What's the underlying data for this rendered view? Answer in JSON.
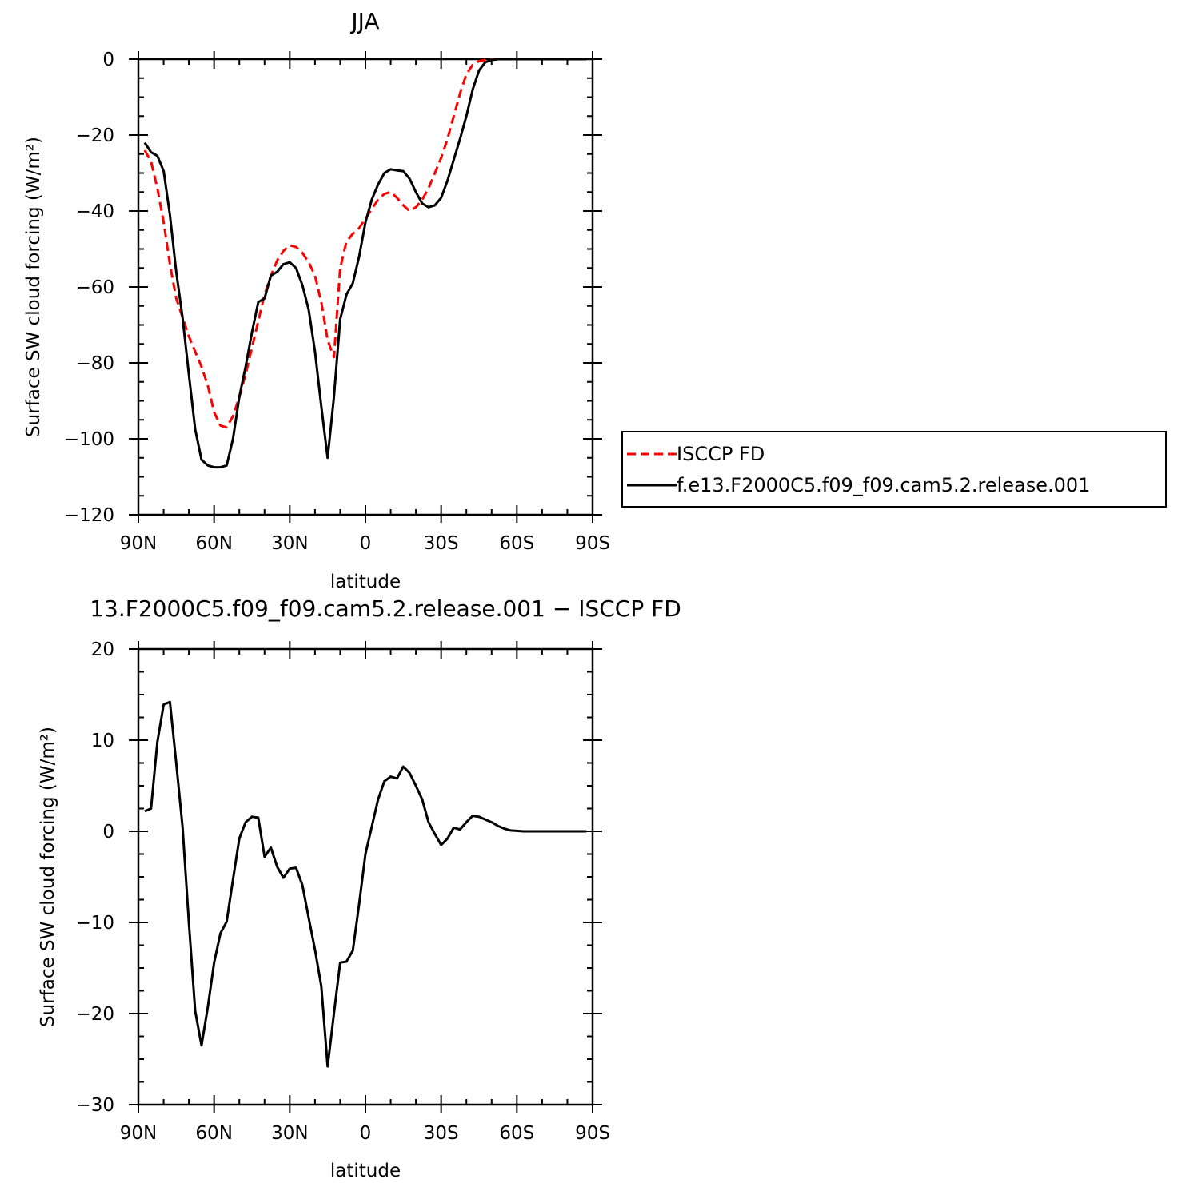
{
  "chart_data": [
    {
      "type": "line",
      "title": "JJA",
      "xlabel": "latitude",
      "ylabel": "Surface SW cloud forcing (W/m²)",
      "xlim": [
        -90,
        90
      ],
      "ylim": [
        -120,
        0
      ],
      "x_direction": "90N on left, 90S on right",
      "x_ticks": [
        90,
        60,
        30,
        0,
        -30,
        -60,
        -90
      ],
      "x_tick_labels": [
        "90N",
        "60N",
        "30N",
        "0",
        "30S",
        "60S",
        "90S"
      ],
      "y_ticks": [
        0,
        -20,
        -40,
        -60,
        -80,
        -100,
        -120
      ],
      "y_tick_labels": [
        "0",
        "−20",
        "−40",
        "−60",
        "−80",
        "−100",
        "−120"
      ],
      "grid": false,
      "legend_position": "right of plot",
      "series": [
        {
          "name": "ISCCP FD",
          "color": "#ff0000",
          "style": "dashed",
          "x": [
            87.5,
            85,
            82.5,
            80,
            77.5,
            75,
            72.5,
            70,
            67.5,
            65,
            62.5,
            60,
            57.5,
            55,
            52.5,
            50,
            47.5,
            45,
            42.5,
            40,
            37.5,
            35,
            32.5,
            30,
            27.5,
            25,
            22.5,
            20,
            17.5,
            15,
            12.5,
            10,
            7.5,
            5,
            2.5,
            0,
            -2.5,
            -5,
            -7.5,
            -10,
            -12.5,
            -15,
            -17.5,
            -20,
            -22.5,
            -25,
            -27.5,
            -30,
            -32.5,
            -35,
            -37.5,
            -40,
            -42.5,
            -45,
            -47.5,
            -50,
            -52.5,
            -55,
            -57.5,
            -60,
            -62.5,
            -65,
            -67.5,
            -70,
            -72.5,
            -75,
            -77.5,
            -80,
            -82.5,
            -85,
            -87.5
          ],
          "y": [
            -24,
            -27,
            -34,
            -43,
            -54,
            -63,
            -68,
            -73,
            -77,
            -81,
            -86,
            -93,
            -96.5,
            -97,
            -94,
            -89,
            -83,
            -76,
            -69,
            -62,
            -57,
            -53,
            -50.5,
            -49,
            -49.5,
            -51,
            -53.5,
            -57,
            -64,
            -74,
            -78.5,
            -55,
            -48,
            -46,
            -44.5,
            -42,
            -39.5,
            -37,
            -35.5,
            -35,
            -36.5,
            -38.5,
            -40,
            -39,
            -37,
            -34,
            -30,
            -26,
            -21,
            -15,
            -9,
            -4,
            -1.5,
            -0.5,
            -0.2,
            -0.1,
            0,
            0,
            0,
            0,
            0,
            0,
            0,
            0,
            0,
            0,
            0,
            0,
            0,
            0,
            0
          ]
        },
        {
          "name": "f.e13.F2000C5.f09_f09.cam5.2.release.001",
          "color": "#000000",
          "style": "solid",
          "x": [
            87.5,
            85,
            82.5,
            80,
            77.5,
            75,
            72.5,
            70,
            67.5,
            65,
            62.5,
            60,
            57.5,
            55,
            52.5,
            50,
            47.5,
            45,
            42.5,
            40,
            37.5,
            35,
            32.5,
            30,
            27.5,
            25,
            22.5,
            20,
            17.5,
            15,
            12.5,
            10,
            7.5,
            5,
            2.5,
            0,
            -2.5,
            -5,
            -7.5,
            -10,
            -12.5,
            -15,
            -17.5,
            -20,
            -22.5,
            -25,
            -27.5,
            -30,
            -32.5,
            -35,
            -37.5,
            -40,
            -42.5,
            -45,
            -47.5,
            -50,
            -52.5,
            -55,
            -57.5,
            -60,
            -62.5,
            -65,
            -67.5,
            -70,
            -72.5,
            -75,
            -77.5,
            -80,
            -82.5,
            -85,
            -87.5
          ],
          "y": [
            -22,
            -24.5,
            -25.5,
            -29.5,
            -41,
            -56,
            -68,
            -83,
            -97.5,
            -105.5,
            -107,
            -107.5,
            -107.5,
            -107,
            -100,
            -89,
            -81,
            -72,
            -64,
            -63,
            -57,
            -56,
            -54,
            -53.5,
            -55,
            -59.5,
            -66,
            -77,
            -91.5,
            -105,
            -89,
            -68.5,
            -62,
            -59,
            -52,
            -43,
            -37,
            -33,
            -30,
            -29,
            -29.3,
            -29.5,
            -31.5,
            -35,
            -38,
            -39,
            -38.5,
            -36.5,
            -32,
            -26.5,
            -21,
            -15,
            -8,
            -3,
            -0.8,
            -0.2,
            0,
            0,
            0,
            0,
            0,
            0,
            0,
            0,
            0,
            0,
            0,
            0,
            0,
            0,
            0
          ]
        }
      ]
    },
    {
      "type": "line",
      "title": "13.F2000C5.f09_f09.cam5.2.release.001 − ISCCP FD",
      "xlabel": "latitude",
      "ylabel": "Surface SW cloud forcing (W/m²)",
      "xlim": [
        -90,
        90
      ],
      "ylim": [
        -30,
        20
      ],
      "x_direction": "90N on left, 90S on right",
      "x_ticks": [
        90,
        60,
        30,
        0,
        -30,
        -60,
        -90
      ],
      "x_tick_labels": [
        "90N",
        "60N",
        "30N",
        "0",
        "30S",
        "60S",
        "90S"
      ],
      "y_ticks": [
        20,
        10,
        0,
        -10,
        -20,
        -30
      ],
      "y_tick_labels": [
        "20",
        "10",
        "0",
        "−10",
        "−20",
        "−30"
      ],
      "grid": false,
      "series": [
        {
          "color": "#000000",
          "style": "solid",
          "x": [
            87.5,
            85,
            82.5,
            80,
            77.5,
            75,
            72.5,
            70,
            67.5,
            65,
            62.5,
            60,
            57.5,
            55,
            52.5,
            50,
            47.5,
            45,
            42.5,
            40,
            37.5,
            35,
            32.5,
            30,
            27.5,
            25,
            22.5,
            20,
            17.5,
            15,
            12.5,
            10,
            7.5,
            5,
            2.5,
            0,
            -2.5,
            -5,
            -7.5,
            -10,
            -12.5,
            -15,
            -17.5,
            -20,
            -22.5,
            -25,
            -27.5,
            -30,
            -32.5,
            -35,
            -37.5,
            -40,
            -42.5,
            -45,
            -47.5,
            -50,
            -52.5,
            -55,
            -57.5,
            -60,
            -62.5,
            -65,
            -67.5,
            -70,
            -72.5,
            -75,
            -77.5,
            -80,
            -82.5,
            -85,
            -87.5
          ],
          "y": [
            2.2,
            2.5,
            9.8,
            13.9,
            14.2,
            7.5,
            0.5,
            -10,
            -19.7,
            -23.5,
            -19.3,
            -14.4,
            -11.2,
            -9.9,
            -5.3,
            -0.8,
            1.0,
            1.6,
            1.5,
            -2.8,
            -1.8,
            -3.9,
            -5.1,
            -4.1,
            -4.0,
            -5.9,
            -9.5,
            -13.0,
            -17.0,
            -25.8,
            -20.0,
            -14.4,
            -14.3,
            -13.1,
            -8.0,
            -2.5,
            0.5,
            3.5,
            5.5,
            6.0,
            5.8,
            7.1,
            6.4,
            5.0,
            3.5,
            1.0,
            -0.3,
            -1.5,
            -0.8,
            0.4,
            0.2,
            1.0,
            1.7,
            1.6,
            1.3,
            1.0,
            0.6,
            0.3,
            0.1,
            0.05,
            0,
            0,
            0,
            0,
            0,
            0,
            0,
            0,
            0,
            0,
            0
          ]
        }
      ]
    }
  ],
  "legend": {
    "entries": [
      {
        "label": "ISCCP FD",
        "color": "#ff0000",
        "style": "dashed"
      },
      {
        "label": "f.e13.F2000C5.f09_f09.cam5.2.release.001",
        "color": "#000000",
        "style": "solid"
      }
    ]
  }
}
